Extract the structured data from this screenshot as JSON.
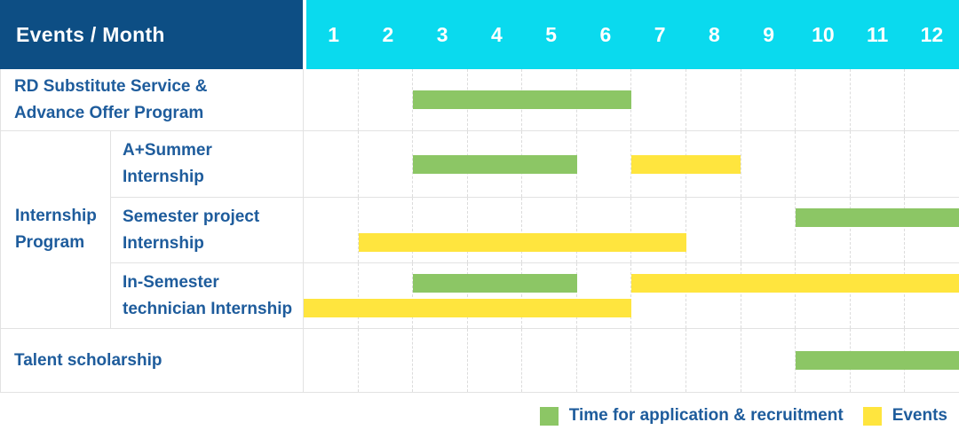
{
  "colors": {
    "header_blue": "#0D4E84",
    "cyan": "#0ADAEE",
    "text_blue": "#1E5C9C",
    "green": "#8CC665",
    "yellow": "#FFE53E",
    "border": "#E2E2E2",
    "grid": "#DCDCDC"
  },
  "header": {
    "title": "Events / Month"
  },
  "chart_data": {
    "type": "gantt",
    "x_unit": "month",
    "x_range": [
      1,
      12
    ],
    "grid": true,
    "months": [
      "1",
      "2",
      "3",
      "4",
      "5",
      "6",
      "7",
      "8",
      "9",
      "10",
      "11",
      "12"
    ],
    "group_label": "Internship\nProgram",
    "rows": [
      {
        "label": "RD Substitute Service &\nAdvance Offer Program",
        "group": null,
        "lines": [
          [
            {
              "series": "Time for application & recruitment",
              "color": "green",
              "start_month": 3,
              "end_month": 6
            }
          ]
        ]
      },
      {
        "label": "A+Summer\nInternship",
        "group": "Internship Program",
        "lines": [
          [
            {
              "series": "Time for application & recruitment",
              "color": "green",
              "start_month": 3,
              "end_month": 5
            },
            {
              "series": "Events",
              "color": "yellow",
              "start_month": 7,
              "end_month": 8
            }
          ]
        ]
      },
      {
        "label": "Semester project\nInternship",
        "group": "Internship Program",
        "lines": [
          [
            {
              "series": "Time for application & recruitment",
              "color": "green",
              "start_month": 10,
              "end_month": 12
            }
          ],
          [
            {
              "series": "Events",
              "color": "yellow",
              "start_month": 2,
              "end_month": 7
            }
          ]
        ]
      },
      {
        "label": "In-Semester\ntechnician Internship",
        "group": "Internship Program",
        "lines": [
          [
            {
              "series": "Time for application & recruitment",
              "color": "green",
              "start_month": 3,
              "end_month": 5
            },
            {
              "series": "Events",
              "color": "yellow",
              "start_month": 7,
              "end_month": 12
            }
          ],
          [
            {
              "series": "Events",
              "color": "yellow",
              "start_month": 1,
              "end_month": 6
            }
          ]
        ]
      },
      {
        "label": "Talent scholarship",
        "group": null,
        "lines": [
          [
            {
              "series": "Time for application & recruitment",
              "color": "green",
              "start_month": 10,
              "end_month": 12
            }
          ]
        ]
      }
    ],
    "legend": [
      {
        "label": "Time for application & recruitment",
        "color": "green"
      },
      {
        "label": "Events",
        "color": "yellow"
      }
    ],
    "legend_position": "bottom-right"
  }
}
